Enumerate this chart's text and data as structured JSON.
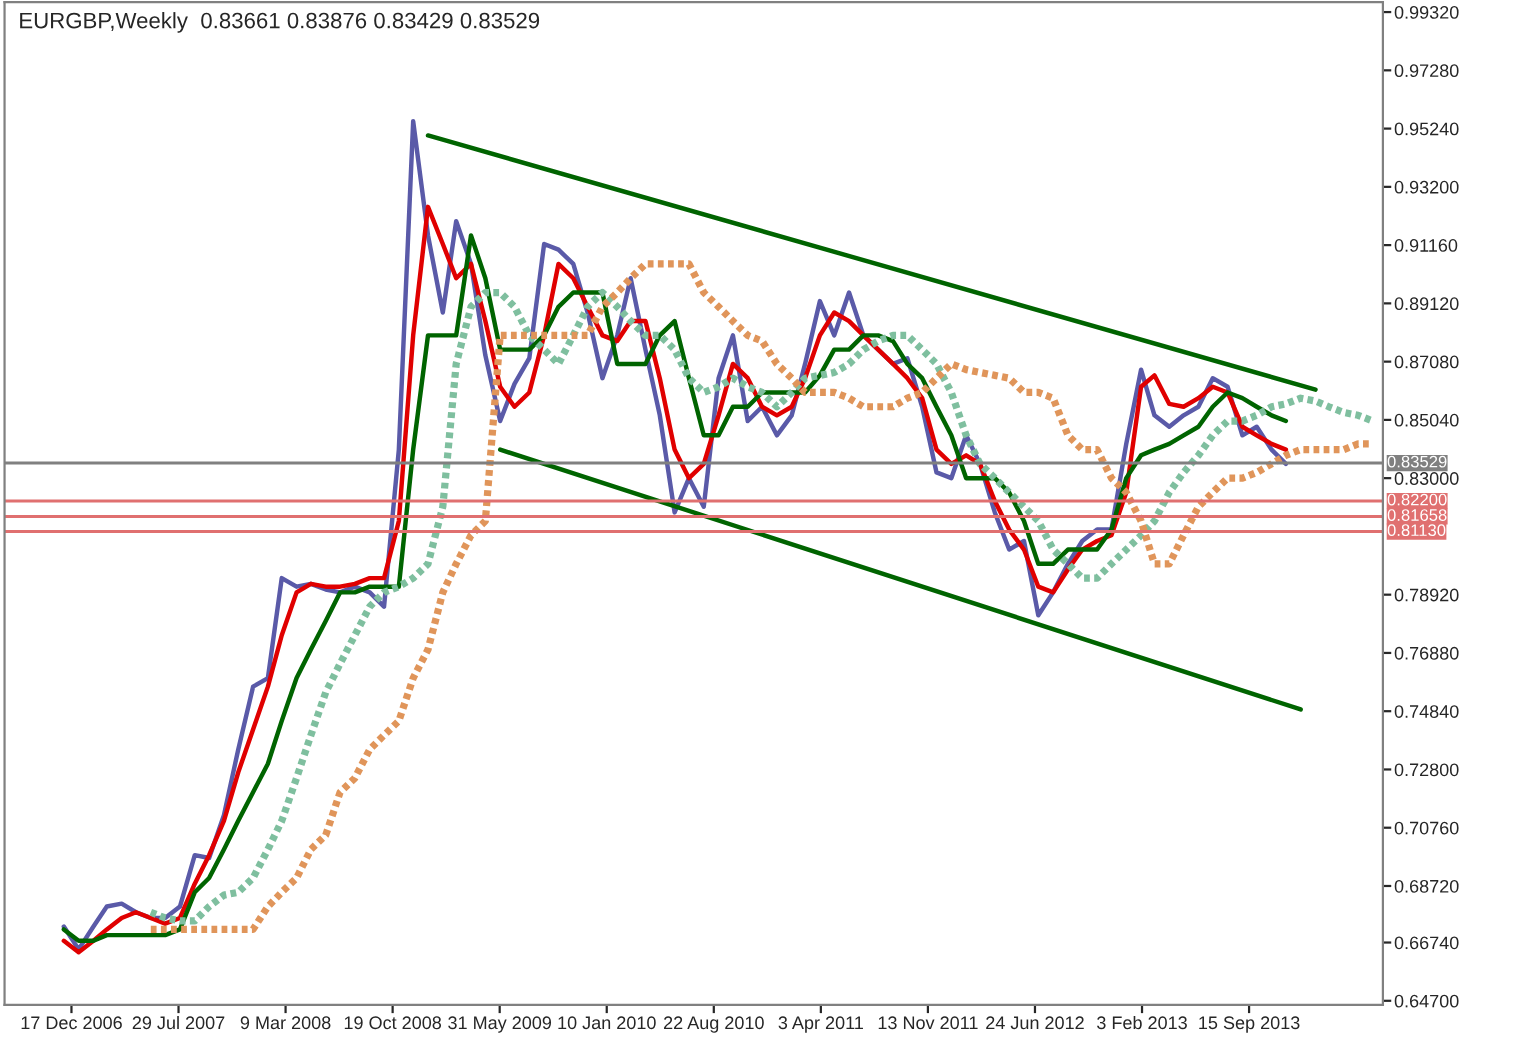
{
  "chart_data": {
    "type": "line",
    "title": "EURGBP,Weekly  0.83661 0.83876 0.83429 0.83529",
    "x": [
      "2006-12",
      "2007-01",
      "2007-02",
      "2007-03",
      "2007-04",
      "2007-05",
      "2007-06",
      "2007-07",
      "2007-08",
      "2007-09",
      "2007-10",
      "2007-11",
      "2007-12",
      "2008-01",
      "2008-02",
      "2008-03",
      "2008-04",
      "2008-05",
      "2008-06",
      "2008-07",
      "2008-08",
      "2008-09",
      "2008-10",
      "2008-11",
      "2008-12",
      "2009-01",
      "2009-02",
      "2009-03",
      "2009-04",
      "2009-05",
      "2009-06",
      "2009-07",
      "2009-08",
      "2009-09",
      "2009-10",
      "2009-11",
      "2009-12",
      "2010-01",
      "2010-02",
      "2010-03",
      "2010-04",
      "2010-05",
      "2010-06",
      "2010-07",
      "2010-08",
      "2010-09",
      "2010-10",
      "2010-11",
      "2010-12",
      "2011-01",
      "2011-02",
      "2011-03",
      "2011-04",
      "2011-05",
      "2011-06",
      "2011-07",
      "2011-08",
      "2011-09",
      "2011-10",
      "2011-11",
      "2011-12",
      "2012-01",
      "2012-02",
      "2012-03",
      "2012-04",
      "2012-05",
      "2012-06",
      "2012-07",
      "2012-08",
      "2012-09",
      "2012-10",
      "2012-11",
      "2012-12",
      "2013-01",
      "2013-02",
      "2013-03",
      "2013-04",
      "2013-05",
      "2013-06",
      "2013-07",
      "2013-08",
      "2013-09",
      "2013-10",
      "2013-11",
      "2013-12"
    ],
    "series": [
      {
        "color": "#5a5aa8",
        "line_style": "solid",
        "values": [
          0.673,
          0.665,
          0.673,
          0.68,
          0.681,
          0.678,
          0.676,
          0.676,
          0.68,
          0.698,
          0.697,
          0.712,
          0.735,
          0.757,
          0.76,
          0.795,
          0.792,
          0.793,
          0.791,
          0.79,
          0.792,
          0.79,
          0.785,
          0.84,
          0.955,
          0.915,
          0.888,
          0.92,
          0.905,
          0.873,
          0.85,
          0.863,
          0.872,
          0.912,
          0.91,
          0.905,
          0.888,
          0.865,
          0.88,
          0.9,
          0.875,
          0.852,
          0.818,
          0.83,
          0.82,
          0.865,
          0.88,
          0.85,
          0.855,
          0.845,
          0.852,
          0.87,
          0.892,
          0.88,
          0.895,
          0.88,
          0.875,
          0.87,
          0.872,
          0.855,
          0.832,
          0.83,
          0.845,
          0.835,
          0.818,
          0.805,
          0.808,
          0.782,
          0.79,
          0.8,
          0.808,
          0.812,
          0.812,
          0.842,
          0.868,
          0.852,
          0.848,
          0.852,
          0.855,
          0.865,
          0.862,
          0.845,
          0.848,
          0.84,
          0.835
        ]
      },
      {
        "color": "#e00000",
        "line_style": "solid",
        "values": [
          0.668,
          0.664,
          0.668,
          0.672,
          0.676,
          0.678,
          0.676,
          0.674,
          0.676,
          0.688,
          0.698,
          0.71,
          0.727,
          0.742,
          0.757,
          0.775,
          0.79,
          0.793,
          0.792,
          0.792,
          0.793,
          0.795,
          0.795,
          0.815,
          0.88,
          0.925,
          0.912,
          0.9,
          0.905,
          0.885,
          0.862,
          0.855,
          0.86,
          0.88,
          0.905,
          0.9,
          0.89,
          0.88,
          0.878,
          0.885,
          0.885,
          0.865,
          0.84,
          0.83,
          0.835,
          0.852,
          0.87,
          0.865,
          0.855,
          0.852,
          0.855,
          0.865,
          0.88,
          0.888,
          0.885,
          0.88,
          0.875,
          0.87,
          0.865,
          0.858,
          0.84,
          0.835,
          0.838,
          0.835,
          0.822,
          0.812,
          0.805,
          0.792,
          0.79,
          0.798,
          0.805,
          0.808,
          0.81,
          0.825,
          0.862,
          0.866,
          0.856,
          0.855,
          0.858,
          0.862,
          0.86,
          0.848,
          0.845,
          0.842,
          0.84
        ]
      },
      {
        "color": "#006400",
        "line_style": "solid",
        "values": [
          0.672,
          0.668,
          0.668,
          0.67,
          0.67,
          0.67,
          0.67,
          0.67,
          0.672,
          0.685,
          0.69,
          0.7,
          0.71,
          0.72,
          0.73,
          0.745,
          0.76,
          0.77,
          0.78,
          0.79,
          0.79,
          0.792,
          0.792,
          0.792,
          0.84,
          0.88,
          0.88,
          0.88,
          0.915,
          0.9,
          0.875,
          0.875,
          0.875,
          0.88,
          0.89,
          0.895,
          0.895,
          0.895,
          0.87,
          0.87,
          0.87,
          0.88,
          0.885,
          0.865,
          0.845,
          0.845,
          0.855,
          0.855,
          0.86,
          0.86,
          0.86,
          0.86,
          0.866,
          0.875,
          0.875,
          0.88,
          0.88,
          0.878,
          0.87,
          0.865,
          0.855,
          0.845,
          0.83,
          0.83,
          0.83,
          0.825,
          0.815,
          0.8,
          0.8,
          0.805,
          0.805,
          0.805,
          0.812,
          0.83,
          0.838,
          0.84,
          0.842,
          0.845,
          0.848,
          0.855,
          0.86,
          0.858,
          0.855,
          0.852,
          0.85
        ]
      },
      {
        "color": "#7fbf9f",
        "line_style": "dotted",
        "x": [
          "2007-06",
          "2007-07",
          "2007-08",
          "2007-09",
          "2007-10",
          "2007-11",
          "2007-12",
          "2008-01",
          "2008-02",
          "2008-03",
          "2008-04",
          "2008-05",
          "2008-06",
          "2008-07",
          "2008-08",
          "2008-09",
          "2008-10",
          "2008-11",
          "2008-12",
          "2009-01",
          "2009-02",
          "2009-03",
          "2009-04",
          "2009-05",
          "2009-06",
          "2009-07",
          "2009-08",
          "2009-09",
          "2009-10",
          "2009-11",
          "2009-12",
          "2010-01",
          "2010-02",
          "2010-03",
          "2010-04",
          "2010-05",
          "2010-06",
          "2010-07",
          "2010-08",
          "2010-09",
          "2010-10",
          "2010-11",
          "2010-12",
          "2011-01",
          "2011-02",
          "2011-03",
          "2011-04",
          "2011-05",
          "2011-06",
          "2011-07",
          "2011-08",
          "2011-09",
          "2011-10",
          "2011-11",
          "2011-12",
          "2012-01",
          "2012-02",
          "2012-03",
          "2012-04",
          "2012-05",
          "2012-06",
          "2012-07",
          "2012-08",
          "2012-09",
          "2012-10",
          "2012-11",
          "2012-12",
          "2013-01",
          "2013-02",
          "2013-03",
          "2013-04",
          "2013-05",
          "2013-06",
          "2013-07",
          "2013-08",
          "2013-09",
          "2013-10",
          "2013-11",
          "2013-12",
          "2014-01",
          "2014-02",
          "2014-03",
          "2014-04",
          "2014-05",
          "2014-06"
        ],
        "values": [
          0.678,
          0.676,
          0.675,
          0.675,
          0.68,
          0.684,
          0.685,
          0.69,
          0.7,
          0.71,
          0.725,
          0.74,
          0.755,
          0.765,
          0.775,
          0.785,
          0.79,
          0.792,
          0.795,
          0.8,
          0.82,
          0.87,
          0.89,
          0.895,
          0.895,
          0.89,
          0.88,
          0.875,
          0.87,
          0.88,
          0.89,
          0.895,
          0.89,
          0.885,
          0.88,
          0.88,
          0.875,
          0.865,
          0.86,
          0.862,
          0.865,
          0.862,
          0.86,
          0.855,
          0.86,
          0.865,
          0.866,
          0.867,
          0.87,
          0.875,
          0.878,
          0.88,
          0.88,
          0.875,
          0.87,
          0.86,
          0.845,
          0.835,
          0.83,
          0.825,
          0.82,
          0.815,
          0.805,
          0.8,
          0.795,
          0.795,
          0.8,
          0.805,
          0.81,
          0.815,
          0.825,
          0.832,
          0.838,
          0.845,
          0.85,
          0.85,
          0.852,
          0.855,
          0.856,
          0.858,
          0.857,
          0.855,
          0.853,
          0.852,
          0.85
        ]
      },
      {
        "color": "#e0955a",
        "line_style": "dotted",
        "x": [
          "2007-06",
          "2007-07",
          "2007-08",
          "2007-09",
          "2007-10",
          "2007-11",
          "2007-12",
          "2008-01",
          "2008-02",
          "2008-03",
          "2008-04",
          "2008-05",
          "2008-06",
          "2008-07",
          "2008-08",
          "2008-09",
          "2008-10",
          "2008-11",
          "2008-12",
          "2009-01",
          "2009-02",
          "2009-03",
          "2009-04",
          "2009-05",
          "2009-06",
          "2009-07",
          "2009-08",
          "2009-09",
          "2009-10",
          "2009-11",
          "2009-12",
          "2010-01",
          "2010-02",
          "2010-03",
          "2010-04",
          "2010-05",
          "2010-06",
          "2010-07",
          "2010-08",
          "2010-09",
          "2010-10",
          "2010-11",
          "2010-12",
          "2011-01",
          "2011-02",
          "2011-03",
          "2011-04",
          "2011-05",
          "2011-06",
          "2011-07",
          "2011-08",
          "2011-09",
          "2011-10",
          "2011-11",
          "2011-12",
          "2012-01",
          "2012-02",
          "2012-03",
          "2012-04",
          "2012-05",
          "2012-06",
          "2012-07",
          "2012-08",
          "2012-09",
          "2012-10",
          "2012-11",
          "2012-12",
          "2013-01",
          "2013-02",
          "2013-03",
          "2013-04",
          "2013-05",
          "2013-06",
          "2013-07",
          "2013-08",
          "2013-09",
          "2013-10",
          "2013-11",
          "2013-12",
          "2014-01",
          "2014-02",
          "2014-03",
          "2014-04",
          "2014-05",
          "2014-06"
        ],
        "values": [
          0.672,
          0.672,
          0.672,
          0.672,
          0.672,
          0.672,
          0.672,
          0.672,
          0.68,
          0.685,
          0.69,
          0.7,
          0.705,
          0.72,
          0.725,
          0.735,
          0.74,
          0.745,
          0.76,
          0.77,
          0.79,
          0.8,
          0.81,
          0.815,
          0.88,
          0.88,
          0.88,
          0.88,
          0.88,
          0.88,
          0.88,
          0.89,
          0.895,
          0.9,
          0.905,
          0.905,
          0.905,
          0.905,
          0.895,
          0.89,
          0.885,
          0.88,
          0.878,
          0.87,
          0.865,
          0.86,
          0.86,
          0.86,
          0.858,
          0.855,
          0.855,
          0.855,
          0.858,
          0.86,
          0.865,
          0.87,
          0.868,
          0.867,
          0.866,
          0.865,
          0.86,
          0.86,
          0.858,
          0.845,
          0.84,
          0.84,
          0.83,
          0.825,
          0.815,
          0.8,
          0.8,
          0.81,
          0.82,
          0.825,
          0.83,
          0.83,
          0.832,
          0.835,
          0.838,
          0.84,
          0.84,
          0.84,
          0.84,
          0.842,
          0.842
        ]
      },
      {
        "color": "#006400",
        "line_style": "solid",
        "x": [
          "2009-01",
          "2014-02"
        ],
        "values": [
          0.95,
          0.861
        ]
      },
      {
        "color": "#006400",
        "line_style": "solid",
        "x": [
          "2009-06",
          "2014-01"
        ],
        "values": [
          0.84,
          0.749
        ]
      }
    ],
    "xlim": [
      "2006-07-30",
      "2014-06-22"
    ],
    "xticks": [
      {
        "value": "2006-12-17",
        "label": "17 Dec 2006"
      },
      {
        "value": "2007-07-29",
        "label": "29 Jul 2007"
      },
      {
        "value": "2008-03-09",
        "label": "9 Mar 2008"
      },
      {
        "value": "2008-10-19",
        "label": "19 Oct 2008"
      },
      {
        "value": "2009-05-31",
        "label": "31 May 2009"
      },
      {
        "value": "2010-01-10",
        "label": "10 Jan 2010"
      },
      {
        "value": "2010-08-22",
        "label": "22 Aug 2010"
      },
      {
        "value": "2011-04-03",
        "label": "3 Apr 2011"
      },
      {
        "value": "2011-11-13",
        "label": "13 Nov 2011"
      },
      {
        "value": "2012-06-24",
        "label": "24 Jun 2012"
      },
      {
        "value": "2013-02-03",
        "label": "3 Feb 2013"
      },
      {
        "value": "2013-09-15",
        "label": "15 Sep 2013"
      }
    ],
    "ylim": [
      0.6456,
      0.9967
    ],
    "yticks": [
      {
        "value": 0.647,
        "label": "0.64700"
      },
      {
        "value": 0.6674,
        "label": "0.66740"
      },
      {
        "value": 0.6872,
        "label": "0.68720"
      },
      {
        "value": 0.7076,
        "label": "0.70760"
      },
      {
        "value": 0.728,
        "label": "0.72800"
      },
      {
        "value": 0.7484,
        "label": "0.74840"
      },
      {
        "value": 0.7688,
        "label": "0.76880"
      },
      {
        "value": 0.7892,
        "label": "0.78920"
      },
      {
        "value": 0.83,
        "label": "0.83000"
      },
      {
        "value": 0.8504,
        "label": "0.85040"
      },
      {
        "value": 0.8708,
        "label": "0.87080"
      },
      {
        "value": 0.8912,
        "label": "0.89120"
      },
      {
        "value": 0.9116,
        "label": "0.91160"
      },
      {
        "value": 0.932,
        "label": "0.93200"
      },
      {
        "value": 0.9524,
        "label": "0.95240"
      },
      {
        "value": 0.9728,
        "label": "0.97280"
      },
      {
        "value": 0.9932,
        "label": "0.99320"
      }
    ],
    "ref_lines": [
      {
        "axis": "y",
        "value": 0.83529,
        "label": "0.83529",
        "color": "#808080"
      },
      {
        "axis": "y",
        "value": 0.822,
        "label": "0.82200",
        "color": "#e07070"
      },
      {
        "axis": "y",
        "value": 0.81658,
        "label": "0.81658",
        "color": "#e07070"
      },
      {
        "axis": "y",
        "value": 0.8113,
        "label": "0.81130",
        "color": "#e07070"
      }
    ],
    "grid": false,
    "legend": false
  }
}
